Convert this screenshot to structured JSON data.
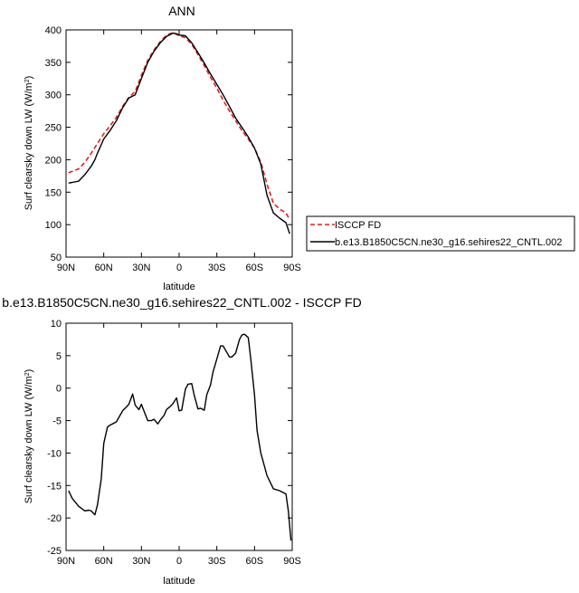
{
  "chart_data": [
    {
      "type": "line",
      "title": "ANN",
      "xlabel": "latitude",
      "ylabel": "Surf clearsky down LW (W/m",
      "ylabel_sup": "2",
      "ylabel_end": ")",
      "xlim": [
        90,
        -90
      ],
      "ylim": [
        50,
        400
      ],
      "x_ticks": [
        {
          "value": 90,
          "label": "90N"
        },
        {
          "value": 60,
          "label": "60N"
        },
        {
          "value": 30,
          "label": "30N"
        },
        {
          "value": 0,
          "label": "0"
        },
        {
          "value": -30,
          "label": "30S"
        },
        {
          "value": -60,
          "label": "60S"
        },
        {
          "value": -90,
          "label": "90S"
        }
      ],
      "y_ticks": [
        50,
        100,
        150,
        200,
        250,
        300,
        350,
        400
      ],
      "legend_placement": "right",
      "series": [
        {
          "name": "ISCCP FD",
          "color": "#e0201b",
          "dash": true,
          "x": [
            88,
            85,
            80,
            75,
            70,
            65,
            60,
            55,
            50,
            45,
            40,
            35,
            30,
            25,
            20,
            15,
            10,
            5,
            0,
            -5,
            -10,
            -15,
            -20,
            -25,
            -30,
            -35,
            -40,
            -45,
            -50,
            -55,
            -60,
            -65,
            -70,
            -75,
            -80,
            -85,
            -88
          ],
          "y": [
            180,
            182,
            186,
            196,
            210,
            225,
            240,
            252,
            265,
            282,
            296,
            305,
            330,
            353,
            369,
            382,
            392,
            396,
            391,
            388,
            378,
            362,
            345,
            327,
            310,
            292,
            275,
            260,
            245,
            232,
            218,
            196,
            162,
            133,
            124,
            118,
            108
          ]
        },
        {
          "name": "b.e13.B1850C5CN.ne30_g16.sehires22_CNTL.002",
          "color": "#000000",
          "dash": false,
          "x": [
            88,
            85,
            80,
            75,
            70,
            67,
            65,
            60,
            55,
            50,
            45,
            40,
            35,
            30,
            25,
            20,
            15,
            10,
            5,
            2,
            0,
            -5,
            -10,
            -15,
            -20,
            -25,
            -30,
            -35,
            -40,
            -45,
            -50,
            -55,
            -60,
            -65,
            -70,
            -75,
            -80,
            -85,
            -88
          ],
          "y": [
            164,
            165,
            167,
            177,
            190,
            200,
            210,
            232,
            245,
            260,
            280,
            295,
            300,
            325,
            350,
            367,
            380,
            390,
            395,
            394,
            392,
            391,
            380,
            365,
            349,
            332,
            316,
            300,
            282,
            264,
            250,
            235,
            218,
            193,
            145,
            118,
            110,
            103,
            86
          ]
        }
      ]
    },
    {
      "type": "line",
      "title": "b.e13.B1850C5CN.ne30_g16.sehires22_CNTL.002 - ISCCP FD",
      "xlabel": "latitude",
      "ylabel": "Surf clearsky down LW (W/m",
      "ylabel_sup": "2",
      "ylabel_end": ")",
      "xlim": [
        90,
        -90
      ],
      "ylim": [
        -25,
        10
      ],
      "x_ticks": [
        {
          "value": 90,
          "label": "90N"
        },
        {
          "value": 60,
          "label": "60N"
        },
        {
          "value": 30,
          "label": "30N"
        },
        {
          "value": 0,
          "label": "0"
        },
        {
          "value": -30,
          "label": "30S"
        },
        {
          "value": -60,
          "label": "60S"
        },
        {
          "value": -90,
          "label": "90S"
        }
      ],
      "y_ticks": [
        -25,
        -20,
        -15,
        -10,
        -5,
        0,
        5,
        10
      ],
      "series": [
        {
          "color": "#000000",
          "dash": false,
          "x": [
            88,
            85,
            80,
            75,
            72,
            70,
            67,
            65,
            62,
            60,
            57,
            55,
            50,
            45,
            42,
            40,
            37,
            35,
            32,
            30,
            25,
            22,
            20,
            17,
            15,
            12,
            10,
            7,
            5,
            2,
            0,
            -2,
            -5,
            -7,
            -10,
            -12,
            -15,
            -17,
            -20,
            -22,
            -25,
            -27,
            -30,
            -33,
            -35,
            -38,
            -40,
            -42,
            -45,
            -48,
            -50,
            -52,
            -55,
            -57,
            -60,
            -62,
            -65,
            -70,
            -75,
            -80,
            -85,
            -87,
            -89
          ],
          "y": [
            -15.8,
            -17,
            -18.2,
            -18.9,
            -18.8,
            -18.9,
            -19.5,
            -18,
            -14,
            -8.5,
            -6,
            -5.7,
            -5.2,
            -3.5,
            -2.9,
            -2.5,
            -0.9,
            -2.6,
            -3.3,
            -2.5,
            -5,
            -5,
            -4.8,
            -5.5,
            -4.9,
            -4.2,
            -3.3,
            -2.8,
            -2.4,
            -1.5,
            -3.5,
            -3.4,
            -0.2,
            0.6,
            0.7,
            -1.1,
            -3.2,
            -3.1,
            -3.4,
            -1,
            0.5,
            2.5,
            4.5,
            6.5,
            6.5,
            5.5,
            4.8,
            4.8,
            5.4,
            7.5,
            8.2,
            8.3,
            7.8,
            4.5,
            -1,
            -6.5,
            -10,
            -13.5,
            -15.5,
            -15.8,
            -16.3,
            -19,
            -23.5
          ]
        }
      ]
    }
  ]
}
